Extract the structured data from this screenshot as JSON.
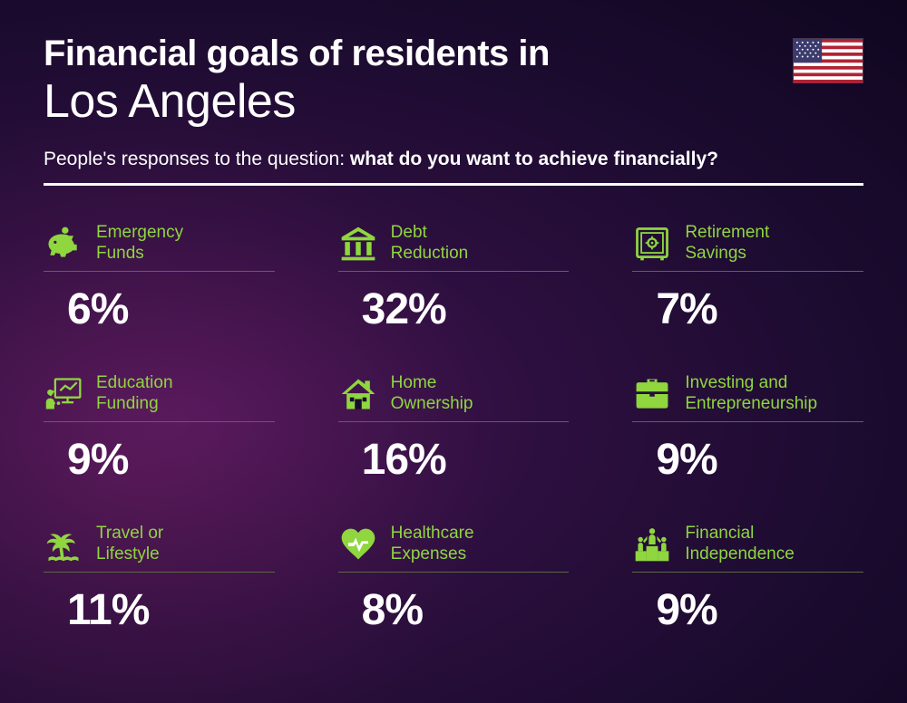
{
  "header": {
    "title_line1": "Financial goals of residents in",
    "city": "Los Angeles",
    "subtitle_prefix": "People's responses to the question: ",
    "subtitle_question": "what do you want to achieve financially?"
  },
  "styling": {
    "accent_color": "#8fd63f",
    "text_color": "#ffffff",
    "title_bold_size": 40,
    "city_size": 52,
    "subtitle_size": 21,
    "label_size": 19,
    "value_size": 48,
    "divider_color": "#ffffff",
    "item_divider_color": "#5a6843",
    "background_gradient": [
      "#4a1658",
      "#2d0f3f",
      "#1a0b2e",
      "#100620"
    ]
  },
  "flag": {
    "country": "US",
    "stripe_colors": [
      "#b22234",
      "#ffffff"
    ],
    "canton_color": "#3c3b6e"
  },
  "items": [
    {
      "icon": "piggy-bank",
      "label": "Emergency\nFunds",
      "value": "6%"
    },
    {
      "icon": "bank",
      "label": "Debt\nReduction",
      "value": "32%"
    },
    {
      "icon": "safe",
      "label": "Retirement\nSavings",
      "value": "7%"
    },
    {
      "icon": "presentation",
      "label": "Education\nFunding",
      "value": "9%"
    },
    {
      "icon": "house",
      "label": "Home\nOwnership",
      "value": "16%"
    },
    {
      "icon": "briefcase",
      "label": "Investing and\nEntrepreneurship",
      "value": "9%"
    },
    {
      "icon": "palm-tree",
      "label": "Travel or\nLifestyle",
      "value": "11%"
    },
    {
      "icon": "heart-pulse",
      "label": "Healthcare\nExpenses",
      "value": "8%"
    },
    {
      "icon": "podium",
      "label": "Financial\nIndependence",
      "value": "9%"
    }
  ]
}
